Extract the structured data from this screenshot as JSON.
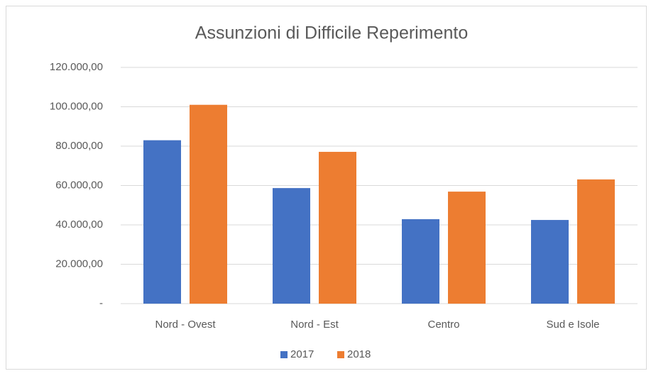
{
  "chart_data": {
    "type": "bar",
    "title": "Assunzioni di Difficile Reperimento",
    "categories": [
      "Nord - Ovest",
      "Nord - Est",
      "Centro",
      "Sud e Isole"
    ],
    "series": [
      {
        "name": "2017",
        "color": "#4472c4",
        "values": [
          83000,
          58700,
          42900,
          42500
        ]
      },
      {
        "name": "2018",
        "color": "#ed7d31",
        "values": [
          101000,
          77100,
          56900,
          63100
        ]
      }
    ],
    "ylim": [
      0,
      120000
    ],
    "yticks": [
      {
        "value": 0,
        "label": "-"
      },
      {
        "value": 20000,
        "label": "20.000,00"
      },
      {
        "value": 40000,
        "label": "40.000,00"
      },
      {
        "value": 60000,
        "label": "60.000,00"
      },
      {
        "value": 80000,
        "label": "80.000,00"
      },
      {
        "value": 100000,
        "label": "100.000,00"
      },
      {
        "value": 120000,
        "label": "120.000,00"
      }
    ],
    "grid": true,
    "legend": "bottom"
  }
}
